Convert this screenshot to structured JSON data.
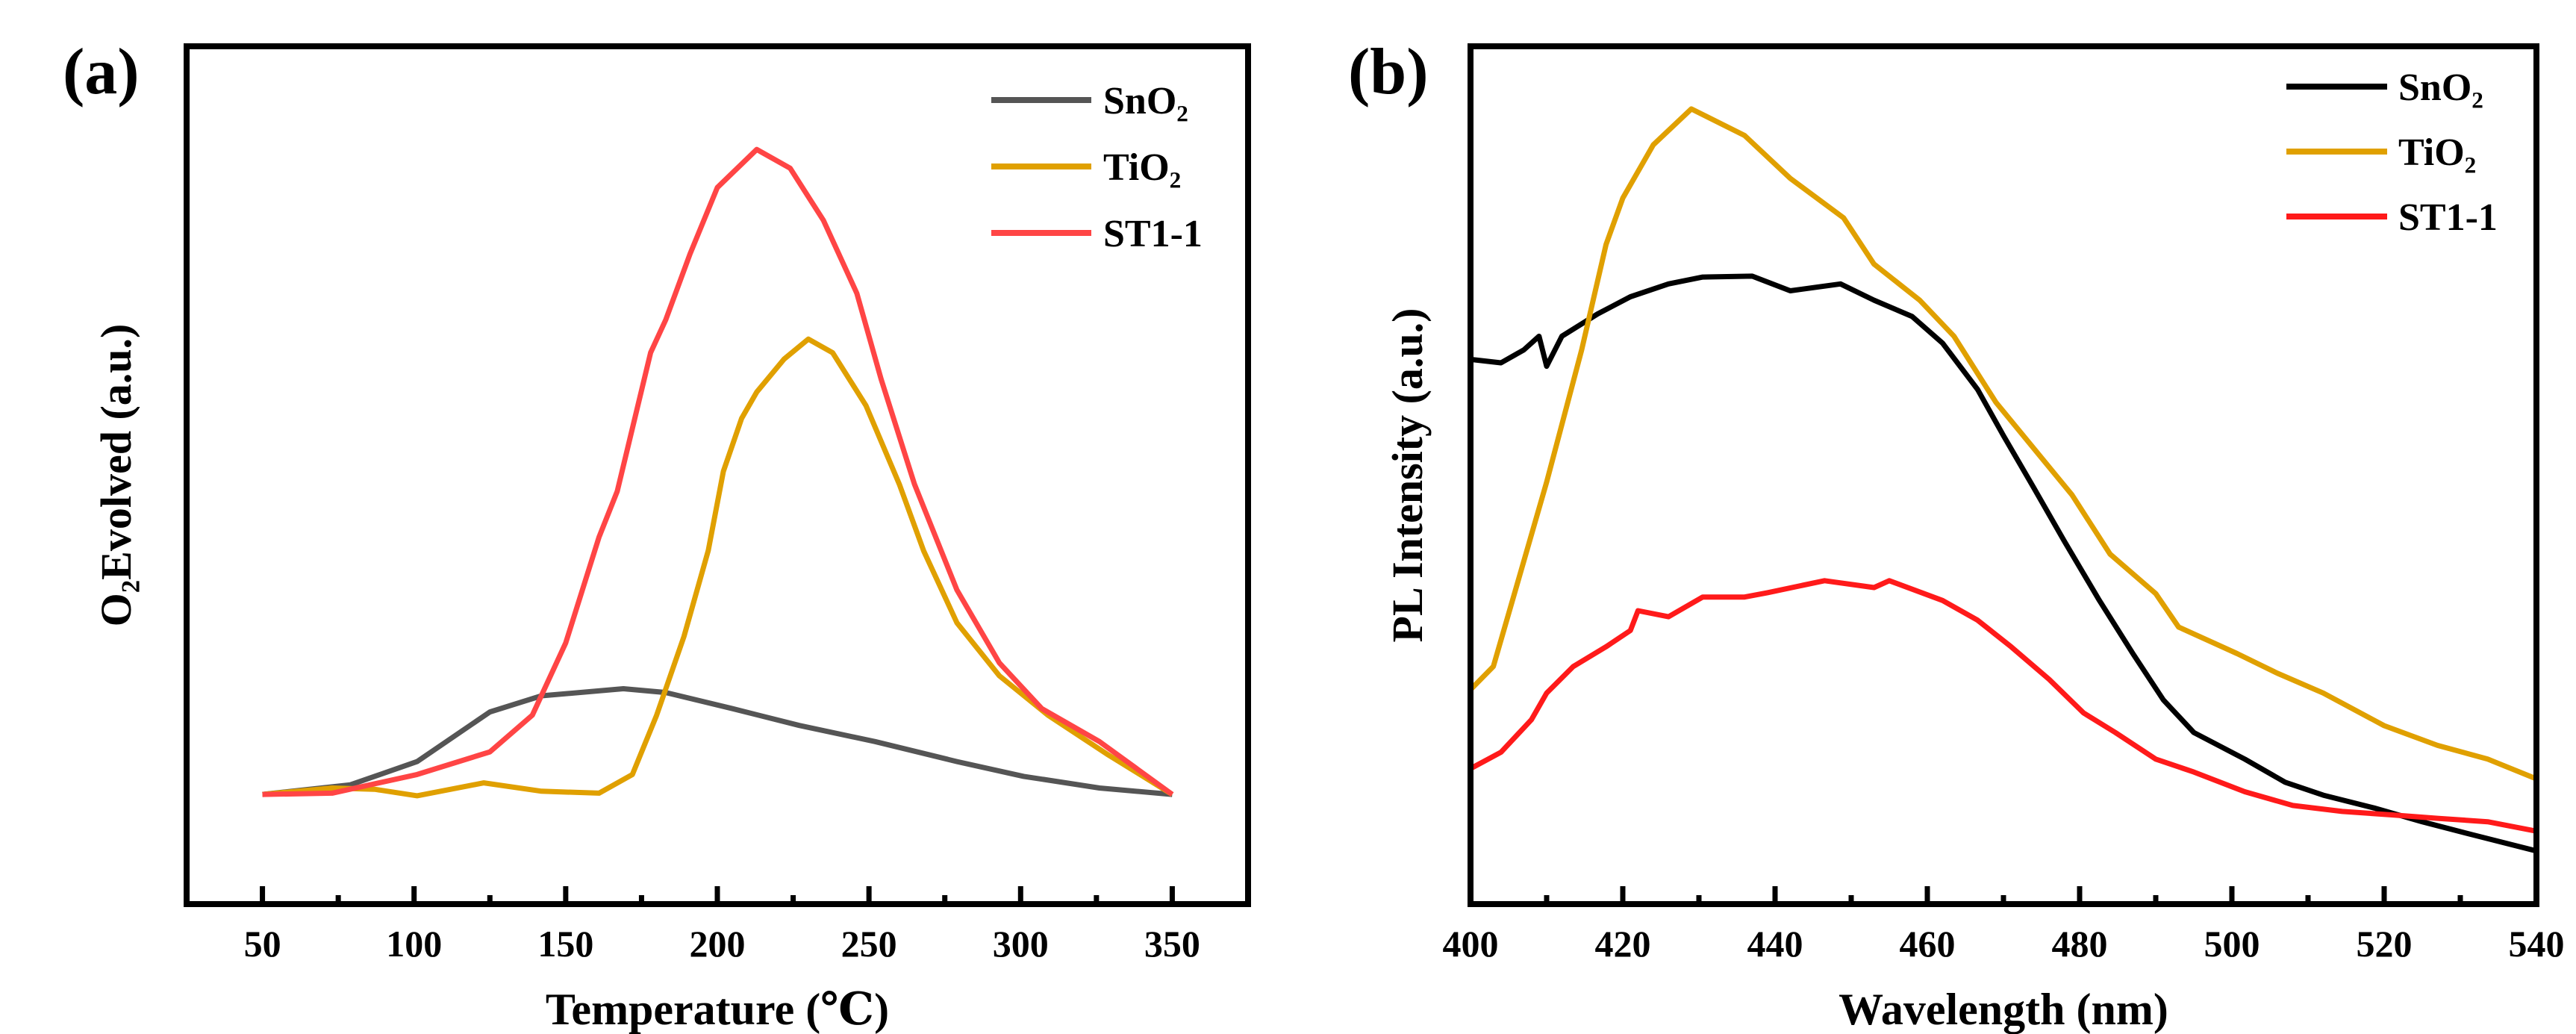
{
  "chart_data": [
    {
      "panel_label": "(a)",
      "type": "line",
      "xlabel": "Temperature (℃)",
      "ylabel": "O₂Evolved (a.u.)",
      "xlim": [
        25,
        375
      ],
      "ylim": [
        -17,
        116
      ],
      "xticks": [
        50,
        100,
        150,
        200,
        250,
        300,
        350
      ],
      "xminor": [
        75,
        125,
        175,
        225,
        275,
        325
      ],
      "y_ticks_shown": false,
      "grid": false,
      "legend_position": "top-right",
      "series": [
        {
          "name": "SnO₂",
          "color": "#555555",
          "x": [
            50,
            79,
            101,
            125,
            142,
            169,
            183,
            205,
            227,
            252,
            279,
            301,
            326,
            350
          ],
          "y": [
            0,
            1.5,
            5.1,
            12.8,
            15.3,
            16.4,
            15.8,
            13.3,
            10.7,
            8.2,
            5.1,
            2.8,
            1,
            0
          ]
        },
        {
          "name": "TiO₂",
          "color": "#E0A000",
          "x": [
            50,
            73,
            87,
            101,
            123,
            142,
            161,
            172,
            180,
            189,
            197,
            202,
            208,
            213,
            222,
            230,
            238,
            249,
            260,
            268,
            279,
            293,
            309,
            329,
            350
          ],
          "y": [
            0,
            1,
            0.8,
            -0.2,
            1.8,
            0.5,
            0.2,
            3.1,
            12.3,
            24.5,
            37.8,
            50.1,
            58.3,
            62.4,
            67.5,
            70.6,
            68.5,
            60.3,
            48.1,
            37.8,
            26.6,
            18.4,
            12.3,
            6.1,
            0
          ]
        },
        {
          "name": "ST1-1",
          "color": "#FF4545",
          "x": [
            50,
            73,
            101,
            125,
            139,
            150,
            161,
            167,
            178,
            183,
            191,
            200,
            213,
            224,
            235,
            246,
            254,
            265,
            279,
            293,
            307,
            326,
            350
          ],
          "y": [
            0,
            0.2,
            3.1,
            6.6,
            12.3,
            23.5,
            39.9,
            47,
            68.5,
            73.6,
            83.8,
            94.1,
            100,
            97.1,
            89,
            77.7,
            64.4,
            48.1,
            31.7,
            20.4,
            13.3,
            8.2,
            0
          ]
        }
      ]
    },
    {
      "panel_label": "(b)",
      "type": "line",
      "xlabel": "Wavelength (nm)",
      "ylabel": "PL Intensity (a.u.)",
      "xlim": [
        400,
        540
      ],
      "ylim": [
        0,
        100
      ],
      "xticks": [
        400,
        420,
        440,
        460,
        480,
        500,
        520,
        540
      ],
      "xminor": [
        410,
        430,
        450,
        470,
        490,
        510,
        530
      ],
      "y_ticks_shown": false,
      "grid": false,
      "legend_position": "top-right",
      "series": [
        {
          "name": "SnO₂",
          "color": "#000000",
          "x": [
            400,
            404,
            407,
            409,
            410,
            412,
            416.7,
            421,
            426,
            430.5,
            437,
            442,
            448.6,
            453,
            458,
            462,
            466.6,
            470,
            474,
            478,
            482.6,
            487,
            491,
            495,
            501.7,
            507,
            512,
            518.7,
            525,
            531.5,
            540
          ],
          "y": [
            63.5,
            63.1,
            64.6,
            66.2,
            62.7,
            66.2,
            68.8,
            70.8,
            72.3,
            73.1,
            73.2,
            71.5,
            72.3,
            70.4,
            68.5,
            65.4,
            60,
            54.6,
            48.5,
            42.3,
            35.4,
            29.2,
            23.8,
            20,
            16.9,
            14.2,
            12.7,
            11.2,
            9.6,
            8.1,
            6.2
          ]
        },
        {
          "name": "TiO₂",
          "color": "#E0A000",
          "x": [
            400,
            403,
            406,
            410,
            414.6,
            417.8,
            420,
            424,
            429,
            436,
            442,
            449,
            453,
            459,
            463.5,
            469,
            474,
            479,
            484,
            490,
            493,
            500.7,
            506,
            512,
            520,
            527,
            533.6,
            540
          ],
          "y": [
            25,
            27.7,
            36.9,
            49.2,
            64.6,
            76.9,
            82.3,
            88.5,
            92.7,
            89.6,
            84.6,
            80,
            74.6,
            70.4,
            66.2,
            58.5,
            53.1,
            47.7,
            40.8,
            36.2,
            32.3,
            29.2,
            26.9,
            24.6,
            20.8,
            18.5,
            16.9,
            14.6
          ]
        },
        {
          "name": "ST1-1",
          "color": "#FF1A1A",
          "x": [
            400,
            404,
            408,
            410,
            413.5,
            417.8,
            421,
            422,
            426,
            430.5,
            436,
            439,
            446.5,
            453,
            455,
            462,
            466.6,
            471,
            476,
            480.5,
            484.7,
            490,
            495,
            501.7,
            508,
            514.5,
            521,
            527,
            533.6,
            540
          ],
          "y": [
            15.8,
            17.7,
            21.5,
            24.6,
            27.7,
            30,
            31.9,
            34.2,
            33.5,
            35.8,
            35.8,
            36.3,
            37.7,
            36.9,
            37.7,
            35.4,
            33.1,
            30,
            26.2,
            22.3,
            20,
            16.9,
            15.4,
            13.1,
            11.5,
            10.8,
            10.4,
            10,
            9.6,
            8.5
          ]
        }
      ]
    }
  ]
}
